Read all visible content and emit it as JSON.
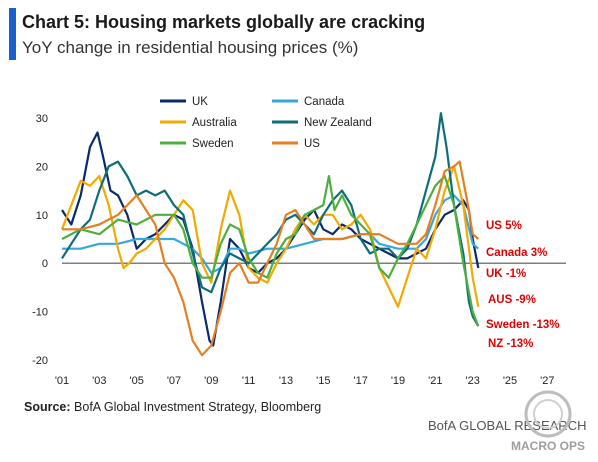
{
  "title": "Chart 5: Housing markets globally are cracking",
  "subtitle": "YoY change in residential housing prices (%)",
  "source_label": "Source:",
  "source_text": "BofA Global Investment Strategy, Bloomberg",
  "brand_text": "BofA GLOBAL RESEARCH",
  "watermark_text": "MACRO OPS",
  "colors": {
    "UK": "#0b2a6b",
    "Canada": "#35a8e0",
    "Australia": "#f2a900",
    "New Zealand": "#0d6e78",
    "Sweden": "#4caf3f",
    "US": "#e67e22",
    "end_label": "#e00000",
    "accent": "#1a5fd0"
  },
  "chart_data": {
    "type": "line",
    "title": "Chart 5: Housing markets globally are cracking",
    "subtitle": "YoY change in residential housing prices (%)",
    "xlabel": "",
    "ylabel": "",
    "xlim": [
      2001,
      2028
    ],
    "ylim": [
      -20,
      30
    ],
    "x_ticks": [
      "'01",
      "'03",
      "'05",
      "'07",
      "'09",
      "'11",
      "'13",
      "'15",
      "'17",
      "'19",
      "'21",
      "'23",
      "'25",
      "'27"
    ],
    "x_tick_values": [
      2001,
      2003,
      2005,
      2007,
      2009,
      2011,
      2013,
      2015,
      2017,
      2019,
      2021,
      2023,
      2025,
      2027
    ],
    "y_ticks": [
      -20,
      -10,
      0,
      10,
      20,
      30
    ],
    "grid": false,
    "legend_position": "top",
    "series": [
      {
        "name": "UK",
        "points": [
          [
            2001,
            11
          ],
          [
            2001.5,
            8
          ],
          [
            2002,
            14
          ],
          [
            2002.5,
            24
          ],
          [
            2002.9,
            27
          ],
          [
            2003.2,
            22
          ],
          [
            2003.6,
            15
          ],
          [
            2004,
            14
          ],
          [
            2004.5,
            10
          ],
          [
            2005,
            3
          ],
          [
            2005.5,
            5
          ],
          [
            2006,
            6
          ],
          [
            2006.5,
            8
          ],
          [
            2007,
            10
          ],
          [
            2007.5,
            9
          ],
          [
            2008,
            3
          ],
          [
            2008.5,
            -8
          ],
          [
            2008.9,
            -16
          ],
          [
            2009.1,
            -17
          ],
          [
            2009.5,
            -8
          ],
          [
            2010,
            5
          ],
          [
            2010.5,
            3
          ],
          [
            2011,
            -1
          ],
          [
            2011.5,
            -2
          ],
          [
            2012,
            0
          ],
          [
            2012.5,
            1
          ],
          [
            2013,
            3
          ],
          [
            2013.5,
            6
          ],
          [
            2014,
            9
          ],
          [
            2014.5,
            11
          ],
          [
            2015,
            7
          ],
          [
            2015.5,
            6
          ],
          [
            2016,
            8
          ],
          [
            2016.5,
            7
          ],
          [
            2017,
            5
          ],
          [
            2017.5,
            4
          ],
          [
            2018,
            3
          ],
          [
            2018.5,
            2
          ],
          [
            2019,
            1
          ],
          [
            2019.5,
            1
          ],
          [
            2020,
            2
          ],
          [
            2020.5,
            3
          ],
          [
            2021,
            7
          ],
          [
            2021.5,
            10
          ],
          [
            2022,
            11
          ],
          [
            2022.5,
            13
          ],
          [
            2022.8,
            11
          ],
          [
            2023,
            5
          ],
          [
            2023.3,
            -1
          ]
        ]
      },
      {
        "name": "Canada",
        "points": [
          [
            2001,
            3
          ],
          [
            2002,
            3
          ],
          [
            2003,
            4
          ],
          [
            2004,
            4
          ],
          [
            2005,
            5
          ],
          [
            2006,
            5
          ],
          [
            2007,
            5
          ],
          [
            2008,
            3
          ],
          [
            2008.5,
            1
          ],
          [
            2009,
            -2
          ],
          [
            2009.5,
            -1
          ],
          [
            2010,
            3
          ],
          [
            2010.5,
            3
          ],
          [
            2011,
            2
          ],
          [
            2012,
            3
          ],
          [
            2013,
            3
          ],
          [
            2014,
            4
          ],
          [
            2015,
            5
          ],
          [
            2016,
            5
          ],
          [
            2017,
            6
          ],
          [
            2017.5,
            6
          ],
          [
            2018,
            4
          ],
          [
            2019,
            3
          ],
          [
            2020,
            3
          ],
          [
            2020.5,
            5
          ],
          [
            2021,
            10
          ],
          [
            2021.5,
            13
          ],
          [
            2022,
            14
          ],
          [
            2022.5,
            12
          ],
          [
            2023,
            4
          ],
          [
            2023.3,
            3
          ]
        ]
      },
      {
        "name": "Australia",
        "points": [
          [
            2001,
            7
          ],
          [
            2001.5,
            12
          ],
          [
            2002,
            17
          ],
          [
            2002.5,
            16
          ],
          [
            2003,
            18
          ],
          [
            2003.5,
            12
          ],
          [
            2004,
            3
          ],
          [
            2004.3,
            -1
          ],
          [
            2004.6,
            0
          ],
          [
            2005,
            2
          ],
          [
            2005.5,
            3
          ],
          [
            2006,
            5
          ],
          [
            2006.5,
            7
          ],
          [
            2007,
            10
          ],
          [
            2007.5,
            13
          ],
          [
            2008,
            11
          ],
          [
            2008.5,
            0
          ],
          [
            2009,
            -4
          ],
          [
            2009.5,
            7
          ],
          [
            2010,
            15
          ],
          [
            2010.5,
            10
          ],
          [
            2011,
            -1
          ],
          [
            2011.5,
            -3
          ],
          [
            2012,
            -4
          ],
          [
            2012.5,
            0
          ],
          [
            2013,
            3
          ],
          [
            2013.5,
            7
          ],
          [
            2014,
            10
          ],
          [
            2014.5,
            8
          ],
          [
            2015,
            10
          ],
          [
            2015.5,
            10
          ],
          [
            2016,
            7
          ],
          [
            2016.5,
            8
          ],
          [
            2017,
            10
          ],
          [
            2017.5,
            7
          ],
          [
            2018,
            -1
          ],
          [
            2018.5,
            -5
          ],
          [
            2019,
            -9
          ],
          [
            2019.5,
            -3
          ],
          [
            2020,
            3
          ],
          [
            2020.5,
            1
          ],
          [
            2021,
            7
          ],
          [
            2021.5,
            15
          ],
          [
            2022,
            20
          ],
          [
            2022.5,
            12
          ],
          [
            2023,
            -3
          ],
          [
            2023.3,
            -9
          ]
        ]
      },
      {
        "name": "New Zealand",
        "points": [
          [
            2001,
            1
          ],
          [
            2001.5,
            4
          ],
          [
            2002,
            7
          ],
          [
            2002.5,
            9
          ],
          [
            2003,
            15
          ],
          [
            2003.5,
            20
          ],
          [
            2004,
            21
          ],
          [
            2004.5,
            18
          ],
          [
            2005,
            14
          ],
          [
            2005.5,
            15
          ],
          [
            2006,
            14
          ],
          [
            2006.5,
            15
          ],
          [
            2007,
            12
          ],
          [
            2007.5,
            10
          ],
          [
            2008,
            2
          ],
          [
            2008.5,
            -5
          ],
          [
            2009,
            -6
          ],
          [
            2009.5,
            -1
          ],
          [
            2010,
            2
          ],
          [
            2010.5,
            1
          ],
          [
            2011,
            0
          ],
          [
            2011.5,
            2
          ],
          [
            2012,
            4
          ],
          [
            2012.5,
            6
          ],
          [
            2013,
            9
          ],
          [
            2013.5,
            10
          ],
          [
            2014,
            8
          ],
          [
            2014.5,
            6
          ],
          [
            2015,
            10
          ],
          [
            2015.5,
            13
          ],
          [
            2016,
            15
          ],
          [
            2016.5,
            12
          ],
          [
            2017,
            5
          ],
          [
            2017.5,
            2
          ],
          [
            2018,
            3
          ],
          [
            2018.5,
            3
          ],
          [
            2019,
            1
          ],
          [
            2019.5,
            3
          ],
          [
            2020,
            8
          ],
          [
            2020.5,
            15
          ],
          [
            2021,
            22
          ],
          [
            2021.3,
            31
          ],
          [
            2021.6,
            24
          ],
          [
            2022,
            12
          ],
          [
            2022.5,
            2
          ],
          [
            2022.8,
            -8
          ],
          [
            2023,
            -11
          ],
          [
            2023.3,
            -13
          ]
        ]
      },
      {
        "name": "Sweden",
        "points": [
          [
            2001,
            5
          ],
          [
            2002,
            7
          ],
          [
            2003,
            6
          ],
          [
            2004,
            9
          ],
          [
            2005,
            8
          ],
          [
            2006,
            10
          ],
          [
            2007,
            10
          ],
          [
            2007.5,
            7
          ],
          [
            2008,
            0
          ],
          [
            2008.5,
            -3
          ],
          [
            2009,
            -3
          ],
          [
            2009.5,
            4
          ],
          [
            2010,
            8
          ],
          [
            2010.5,
            7
          ],
          [
            2011,
            1
          ],
          [
            2011.5,
            -2
          ],
          [
            2012,
            -3
          ],
          [
            2012.5,
            2
          ],
          [
            2013,
            5
          ],
          [
            2013.5,
            6
          ],
          [
            2014,
            10
          ],
          [
            2014.5,
            11
          ],
          [
            2015,
            12
          ],
          [
            2015.3,
            18
          ],
          [
            2015.6,
            11
          ],
          [
            2016,
            14
          ],
          [
            2016.5,
            10
          ],
          [
            2017,
            8
          ],
          [
            2017.5,
            6
          ],
          [
            2018,
            -1
          ],
          [
            2018.5,
            -3
          ],
          [
            2019,
            1
          ],
          [
            2019.5,
            4
          ],
          [
            2020,
            8
          ],
          [
            2020.5,
            12
          ],
          [
            2021,
            16
          ],
          [
            2021.5,
            18
          ],
          [
            2022,
            12
          ],
          [
            2022.5,
            0
          ],
          [
            2023,
            -10
          ],
          [
            2023.3,
            -13
          ]
        ]
      },
      {
        "name": "US",
        "points": [
          [
            2001,
            7
          ],
          [
            2002,
            7
          ],
          [
            2003,
            8
          ],
          [
            2004,
            10
          ],
          [
            2005,
            14
          ],
          [
            2006,
            8
          ],
          [
            2006.5,
            0
          ],
          [
            2007,
            -3
          ],
          [
            2007.5,
            -8
          ],
          [
            2008,
            -16
          ],
          [
            2008.5,
            -19
          ],
          [
            2009,
            -17
          ],
          [
            2009.5,
            -10
          ],
          [
            2010,
            -2
          ],
          [
            2010.5,
            0
          ],
          [
            2011,
            -4
          ],
          [
            2011.5,
            -4
          ],
          [
            2012,
            0
          ],
          [
            2012.5,
            4
          ],
          [
            2013,
            10
          ],
          [
            2013.5,
            11
          ],
          [
            2014,
            8
          ],
          [
            2014.5,
            5
          ],
          [
            2015,
            5
          ],
          [
            2016,
            5
          ],
          [
            2017,
            6
          ],
          [
            2018,
            6
          ],
          [
            2019,
            4
          ],
          [
            2019.5,
            4
          ],
          [
            2020,
            4
          ],
          [
            2020.5,
            6
          ],
          [
            2021,
            12
          ],
          [
            2021.5,
            19
          ],
          [
            2022,
            20
          ],
          [
            2022.3,
            21
          ],
          [
            2022.7,
            13
          ],
          [
            2023,
            6
          ],
          [
            2023.3,
            5
          ]
        ]
      }
    ],
    "end_labels": [
      {
        "text": "US 5%",
        "series": "US"
      },
      {
        "text": "Canada 3%",
        "series": "Canada"
      },
      {
        "text": "UK -1%",
        "series": "UK"
      },
      {
        "text": "AUS -9%",
        "series": "Australia"
      },
      {
        "text": "Sweden -13%",
        "series": "Sweden"
      },
      {
        "text": "NZ -13%",
        "series": "New Zealand"
      }
    ]
  }
}
